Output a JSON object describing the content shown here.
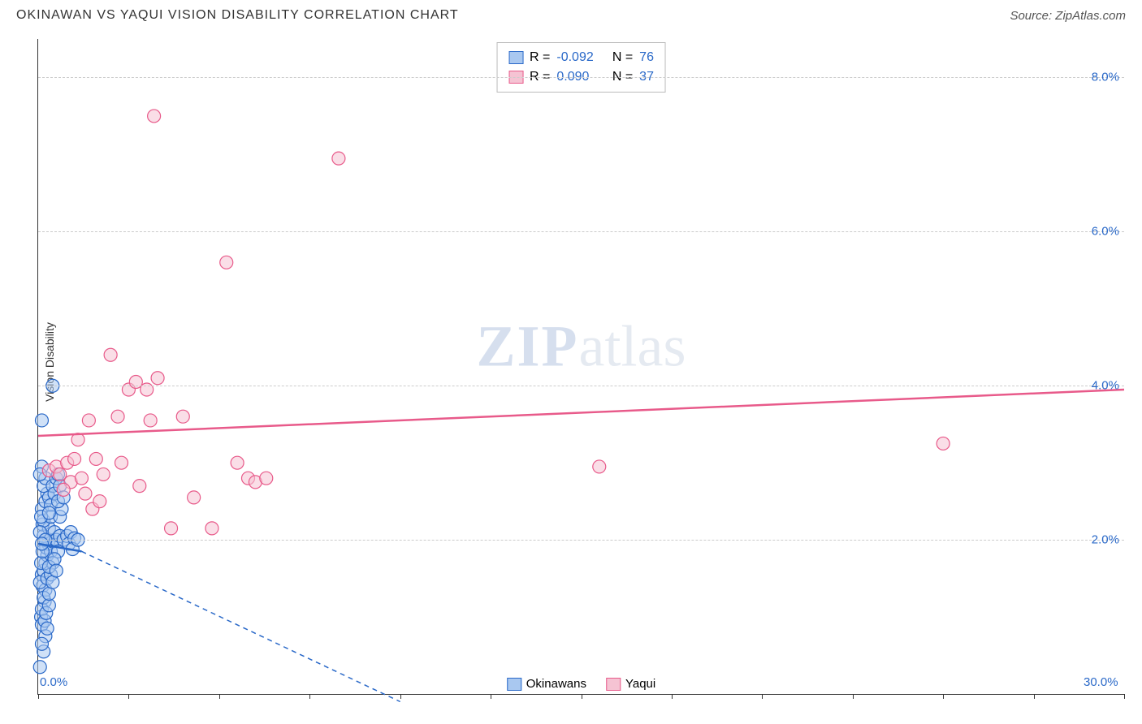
{
  "header": {
    "title": "OKINAWAN VS YAQUI VISION DISABILITY CORRELATION CHART",
    "source": "Source: ZipAtlas.com"
  },
  "chart": {
    "type": "scatter",
    "ylabel": "Vision Disability",
    "xlim": [
      0,
      30
    ],
    "ylim": [
      0,
      8.5
    ],
    "x_ticks": [
      0,
      2.5,
      5,
      7.5,
      10,
      12.5,
      15,
      17.5,
      20,
      22.5,
      25,
      27.5,
      30
    ],
    "x_tick_labels": {
      "0": "0.0%",
      "30": "30.0%"
    },
    "y_gridlines": [
      2,
      4,
      6,
      8
    ],
    "y_tick_labels": {
      "2": "2.0%",
      "4": "4.0%",
      "6": "6.0%",
      "8": "8.0%"
    },
    "background_color": "#ffffff",
    "grid_color": "#cccccc",
    "axis_color": "#333333",
    "marker_radius": 8,
    "marker_opacity": 0.55,
    "series": [
      {
        "name": "Okinawans",
        "color_fill": "#a9c8f0",
        "color_stroke": "#2968c8",
        "R": "-0.092",
        "N": "76",
        "trend": {
          "x1": 0,
          "y1": 1.95,
          "x2": 1.2,
          "y2": 1.85,
          "dash_x2": 10,
          "dash_y2": -0.1
        },
        "points": [
          [
            0.05,
            0.35
          ],
          [
            0.08,
            1.0
          ],
          [
            0.1,
            0.9
          ],
          [
            0.12,
            1.4
          ],
          [
            0.1,
            1.55
          ],
          [
            0.15,
            1.6
          ],
          [
            0.18,
            1.2
          ],
          [
            0.2,
            1.35
          ],
          [
            0.2,
            1.7
          ],
          [
            0.25,
            1.8
          ],
          [
            0.22,
            1.9
          ],
          [
            0.3,
            2.0
          ],
          [
            0.28,
            1.95
          ],
          [
            0.35,
            1.85
          ],
          [
            0.4,
            1.98
          ],
          [
            0.15,
            2.05
          ],
          [
            0.12,
            2.2
          ],
          [
            0.3,
            2.15
          ],
          [
            0.45,
            2.1
          ],
          [
            0.5,
            2.0
          ],
          [
            0.4,
            1.7
          ],
          [
            0.55,
            1.85
          ],
          [
            0.6,
            2.05
          ],
          [
            0.7,
            2.0
          ],
          [
            0.1,
            2.4
          ],
          [
            0.2,
            2.5
          ],
          [
            0.25,
            2.6
          ],
          [
            0.3,
            2.55
          ],
          [
            0.35,
            2.45
          ],
          [
            0.15,
            2.7
          ],
          [
            0.2,
            2.8
          ],
          [
            0.1,
            2.95
          ],
          [
            0.05,
            2.85
          ],
          [
            0.4,
            2.7
          ],
          [
            0.45,
            2.6
          ],
          [
            0.5,
            2.8
          ],
          [
            0.55,
            2.85
          ],
          [
            0.6,
            2.7
          ],
          [
            0.8,
            2.05
          ],
          [
            0.85,
            1.95
          ],
          [
            0.9,
            2.1
          ],
          [
            1.0,
            2.02
          ],
          [
            0.95,
            1.88
          ],
          [
            1.1,
            2.0
          ],
          [
            0.1,
            1.1
          ],
          [
            0.15,
            1.25
          ],
          [
            0.05,
            1.45
          ],
          [
            0.08,
            1.7
          ],
          [
            0.12,
            1.85
          ],
          [
            0.18,
            0.95
          ],
          [
            0.22,
            1.05
          ],
          [
            0.3,
            1.15
          ],
          [
            0.25,
            1.5
          ],
          [
            0.3,
            1.3
          ],
          [
            0.35,
            1.55
          ],
          [
            0.4,
            1.45
          ],
          [
            0.2,
            0.75
          ],
          [
            0.25,
            0.85
          ],
          [
            0.15,
            0.55
          ],
          [
            0.1,
            0.65
          ],
          [
            0.3,
            1.65
          ],
          [
            0.45,
            1.75
          ],
          [
            0.5,
            1.6
          ],
          [
            0.1,
            3.55
          ],
          [
            0.4,
            4.0
          ],
          [
            0.15,
            2.25
          ],
          [
            0.35,
            2.3
          ],
          [
            0.6,
            2.3
          ],
          [
            0.65,
            2.4
          ],
          [
            0.55,
            2.5
          ],
          [
            0.7,
            2.55
          ],
          [
            0.05,
            2.1
          ],
          [
            0.08,
            2.3
          ],
          [
            0.2,
            2.0
          ],
          [
            0.3,
            2.35
          ],
          [
            0.1,
            1.95
          ]
        ]
      },
      {
        "name": "Yaqui",
        "color_fill": "#f5c3d3",
        "color_stroke": "#e85a8a",
        "R": "0.090",
        "N": "37",
        "trend": {
          "x1": 0,
          "y1": 3.35,
          "x2": 30,
          "y2": 3.95
        },
        "points": [
          [
            0.3,
            2.9
          ],
          [
            0.5,
            2.95
          ],
          [
            0.6,
            2.85
          ],
          [
            0.8,
            3.0
          ],
          [
            0.9,
            2.75
          ],
          [
            1.0,
            3.05
          ],
          [
            1.2,
            2.8
          ],
          [
            1.3,
            2.6
          ],
          [
            1.5,
            2.4
          ],
          [
            1.6,
            3.05
          ],
          [
            1.8,
            2.85
          ],
          [
            2.0,
            4.4
          ],
          [
            2.2,
            3.6
          ],
          [
            2.5,
            3.95
          ],
          [
            2.7,
            4.05
          ],
          [
            2.8,
            2.7
          ],
          [
            3.0,
            3.95
          ],
          [
            3.1,
            3.55
          ],
          [
            3.3,
            4.1
          ],
          [
            3.67,
            2.15
          ],
          [
            4.0,
            3.6
          ],
          [
            4.3,
            2.55
          ],
          [
            4.8,
            2.15
          ],
          [
            5.2,
            5.6
          ],
          [
            5.5,
            3.0
          ],
          [
            5.8,
            2.8
          ],
          [
            6.0,
            2.75
          ],
          [
            6.3,
            2.8
          ],
          [
            3.2,
            7.5
          ],
          [
            8.3,
            6.95
          ],
          [
            15.5,
            2.95
          ],
          [
            25.0,
            3.25
          ],
          [
            2.3,
            3.0
          ],
          [
            1.1,
            3.3
          ],
          [
            1.4,
            3.55
          ],
          [
            1.7,
            2.5
          ],
          [
            0.7,
            2.65
          ]
        ]
      }
    ],
    "watermark": {
      "zip": "ZIP",
      "atlas": "atlas"
    }
  },
  "legend_bottom": [
    {
      "label": "Okinawans",
      "fill": "#a9c8f0",
      "stroke": "#2968c8"
    },
    {
      "label": "Yaqui",
      "fill": "#f5c3d3",
      "stroke": "#e85a8a"
    }
  ]
}
